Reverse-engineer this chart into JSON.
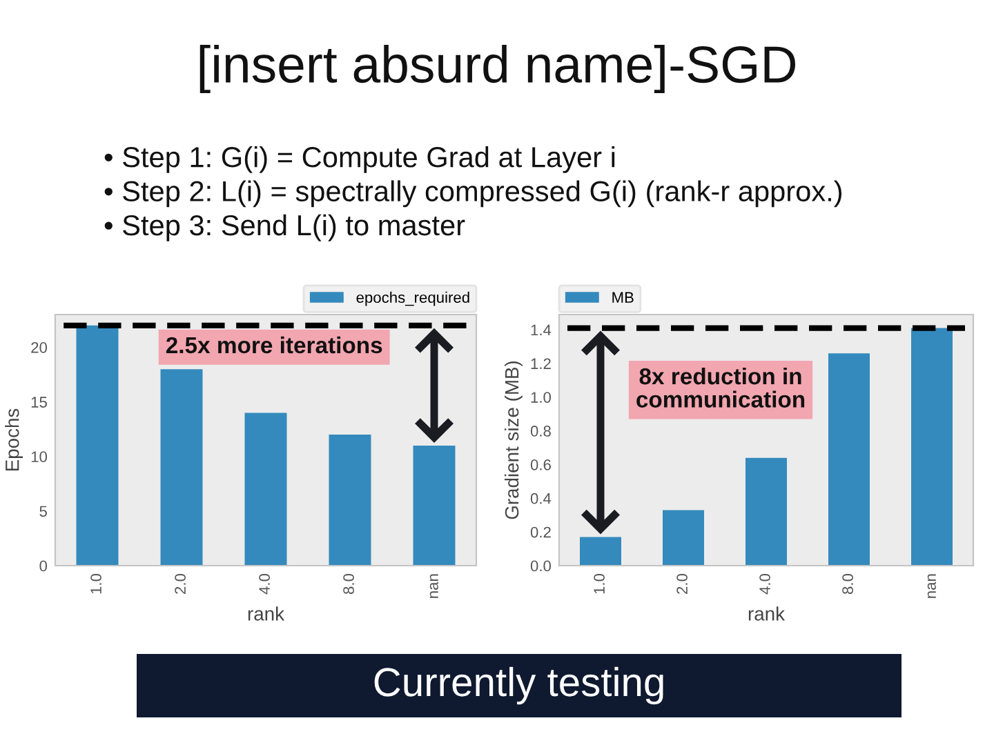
{
  "chart_data": [
    {
      "type": "bar",
      "title": "[insert absurd name]-SGD",
      "subtitle": "• Step 1: G(i) = Compute Grad at Layer i\n• Step 2: L(i) = spectrally compressed G(i) (rank-r approx.)\n• Step 3: Send L(i) to master",
      "xlabel": "rank",
      "ylabel": "Epochs",
      "categories": [
        "1.0",
        "2.0",
        "4.0",
        "8.0",
        "nan"
      ],
      "series": [
        {
          "name": "epochs_required",
          "color": "#348abd",
          "values": [
            22,
            18,
            14,
            12,
            11
          ]
        }
      ],
      "ylim": [
        0,
        23
      ],
      "yticks": [
        0,
        5,
        10,
        15,
        20
      ],
      "legend": "top right",
      "ref_lines": [
        {
          "axis": "y",
          "value": 22,
          "line_style": "dashed",
          "color": "#000000"
        }
      ],
      "annotations": [
        "2.5x more iterations",
        "Currently testing"
      ]
    },
    {
      "type": "bar",
      "xlabel": "rank",
      "ylabel": "Gradient size (MB)",
      "categories": [
        "1.0",
        "2.0",
        "4.0",
        "8.0",
        "nan"
      ],
      "series": [
        {
          "name": "MB",
          "color": "#348abd",
          "values": [
            0.17,
            0.33,
            0.64,
            1.26,
            1.41
          ]
        }
      ],
      "ylim": [
        0,
        1.49
      ],
      "yticks": [
        {
          "value": 0,
          "label": "0.0"
        },
        {
          "value": 0.2,
          "label": "0.2"
        },
        {
          "value": 0.4,
          "label": "0.4"
        },
        {
          "value": 0.6,
          "label": "0.6"
        },
        {
          "value": 0.8,
          "label": "0.8"
        },
        {
          "value": 1.0,
          "label": "1.0"
        },
        {
          "value": 1.2,
          "label": "1.2"
        },
        {
          "value": 1.4,
          "label": "1.4"
        }
      ],
      "legend": "top left",
      "ref_lines": [
        {
          "axis": "y",
          "value": 1.41,
          "line_style": "dashed",
          "color": "#000000"
        }
      ],
      "annotations": [
        "8x reduction in communication"
      ]
    }
  ]
}
